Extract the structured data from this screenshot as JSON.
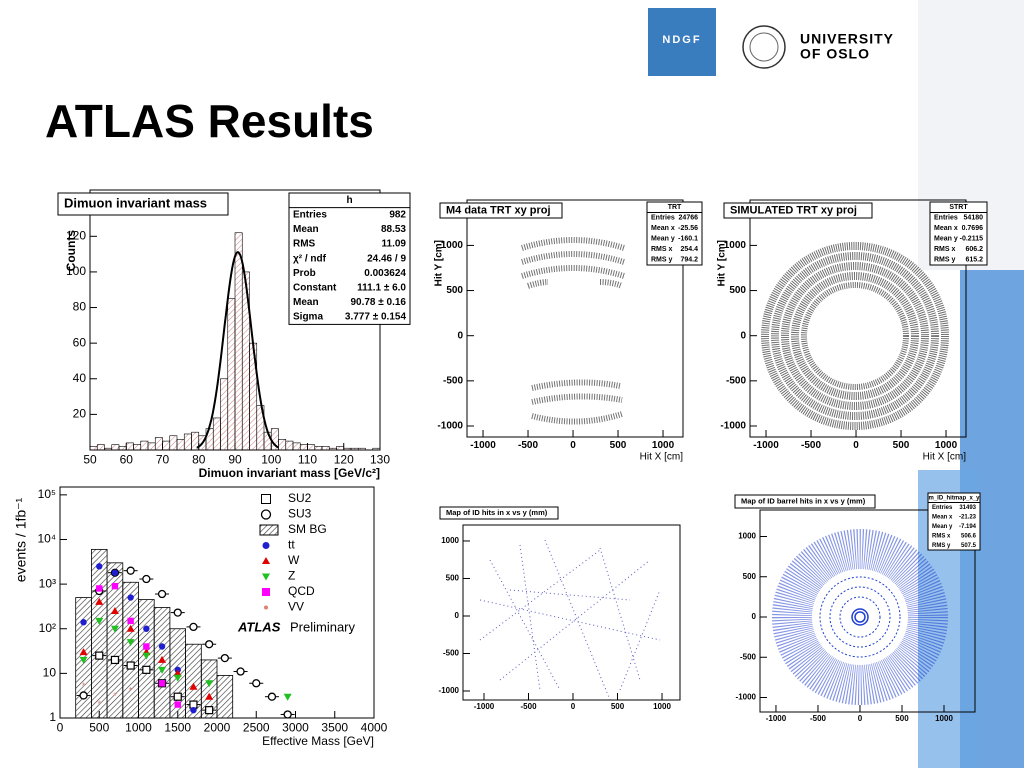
{
  "header": {
    "title": "ATLAS Results",
    "logo_ndgf": "NDGF",
    "logo_line1": "UNIVERSITY",
    "logo_line2": "OF OSLO"
  },
  "chart_data": [
    {
      "type": "histogram",
      "title": "Dimuon invariant mass",
      "x_label": "Dimuon invariant mass [GeV/c²]",
      "y_label": "Counts",
      "bins": [
        50,
        52,
        54,
        56,
        58,
        60,
        62,
        64,
        66,
        68,
        70,
        72,
        74,
        76,
        78,
        80,
        82,
        84,
        86,
        88,
        90,
        92,
        94,
        96,
        98,
        100,
        102,
        104,
        106,
        108,
        110,
        112,
        114,
        116,
        118,
        120,
        122,
        124,
        126,
        128,
        130
      ],
      "values": [
        2,
        3,
        1,
        3,
        2,
        4,
        3,
        5,
        4,
        7,
        5,
        8,
        6,
        9,
        10,
        8,
        12,
        18,
        40,
        85,
        122,
        100,
        60,
        25,
        10,
        12,
        6,
        5,
        4,
        3,
        3,
        2,
        2,
        1,
        2,
        1,
        1,
        1,
        0,
        1
      ],
      "color": "#c0504d",
      "fit": {
        "constant": 111.1,
        "mean": 90.78,
        "sigma": 3.777
      },
      "xlim": [
        50,
        130
      ],
      "xticks": [
        50,
        60,
        70,
        80,
        90,
        100,
        110,
        120,
        130
      ],
      "ylim": [
        0,
        146
      ],
      "yticks": [
        20,
        40,
        60,
        80,
        100,
        120
      ],
      "stats": {
        "title": "h",
        "rows": [
          [
            "Entries",
            "982"
          ],
          [
            "Mean",
            "88.53"
          ],
          [
            "RMS",
            "11.09"
          ],
          [
            "χ² / ndf",
            "24.46 / 9"
          ],
          [
            "Prob",
            "0.003624"
          ],
          [
            "Constant",
            "111.1 ± 6.0"
          ],
          [
            "Mean",
            "90.78 ± 0.16"
          ],
          [
            "Sigma",
            "3.777 ± 0.154"
          ]
        ]
      }
    },
    {
      "type": "scatter",
      "title": "M4 data TRT xy proj",
      "x_label": "Hit X [cm]",
      "y_label": "Hit Y [cm]",
      "xlim": [
        -1178,
        1222
      ],
      "xticks": [
        -1000,
        -500,
        0,
        500,
        1000
      ],
      "ylim": [
        -1122,
        1503
      ],
      "yticks": [
        -1000,
        -500,
        0,
        500,
        1000
      ],
      "stats": {
        "title": "TRT",
        "rows": [
          [
            "Entries",
            "24766"
          ],
          [
            "Mean x",
            "-25.56"
          ],
          [
            "Mean y",
            "-160.1"
          ],
          [
            "RMS x",
            "254.4"
          ],
          [
            "RMS y",
            "794.2"
          ]
        ]
      }
    },
    {
      "type": "scatter",
      "title": "SIMULATED TRT xy proj",
      "x_label": "Hit X [cm]",
      "y_label": "Hit Y [cm]",
      "xlim": [
        -1178,
        1222
      ],
      "xticks": [
        -1000,
        -500,
        0,
        500,
        1000
      ],
      "ylim": [
        -1122,
        1503
      ],
      "yticks": [
        -1000,
        -500,
        0,
        500,
        1000
      ],
      "stats": {
        "title": "STRT",
        "rows": [
          [
            "Entries",
            "54180"
          ],
          [
            "Mean x",
            "0.7696"
          ],
          [
            "Mean y",
            "-0.2115"
          ],
          [
            "RMS x",
            "606.2"
          ],
          [
            "RMS y",
            "615.2"
          ]
        ]
      }
    },
    {
      "type": "scatter",
      "title": "Map of ID hits in x vs y (mm)",
      "xlim": [
        -1236,
        1202
      ],
      "xticks": [
        -1000,
        -500,
        0,
        500,
        1000
      ],
      "ylim": [
        -1120,
        1213
      ],
      "yticks": [
        -1000,
        -500,
        0,
        500,
        1000
      ]
    },
    {
      "type": "scatter",
      "title": "Map of ID barrel hits in x vs y (mm)",
      "xlim": [
        -1190,
        1369
      ],
      "xticks": [
        -1000,
        -500,
        0,
        500,
        1000
      ],
      "ylim": [
        -1180,
        1329
      ],
      "yticks": [
        -1000,
        -500,
        0,
        500,
        1000
      ],
      "stats": {
        "title": "m_ID_hitmap_x_y",
        "rows": [
          [
            "Entries",
            "31493"
          ],
          [
            "Mean x",
            "-21.23"
          ],
          [
            "Mean y",
            "-7.194"
          ],
          [
            "RMS x",
            "506.6"
          ],
          [
            "RMS y",
            "507.5"
          ]
        ]
      }
    },
    {
      "type": "log_histogram",
      "x_label": "Effective Mass [GeV]",
      "y_label": "events / 1fb⁻¹",
      "annotation": "ATLAS",
      "annotation2": "Preliminary",
      "log_y": true,
      "xlim": [
        0,
        4000
      ],
      "xticks": [
        0,
        500,
        1000,
        1500,
        2000,
        2500,
        3000,
        3500,
        4000
      ],
      "ylim": [
        1,
        150000
      ],
      "yticks": [
        {
          "value": 1,
          "label": "1"
        },
        {
          "value": 10,
          "label": "10"
        },
        {
          "value": 100,
          "label": "10²"
        },
        {
          "value": 1000,
          "label": "10³"
        },
        {
          "value": 10000,
          "label": "10⁴"
        },
        {
          "value": 100000,
          "label": "10⁵"
        }
      ],
      "series": [
        {
          "name": "SU2",
          "marker": "square-open",
          "color": "#000000",
          "x": [
            500,
            700,
            900,
            1100,
            1300,
            1500,
            1700,
            1900
          ],
          "values": [
            25,
            20,
            15,
            12,
            6,
            3,
            2,
            1.5
          ]
        },
        {
          "name": "SU3",
          "marker": "circle-open",
          "color": "#000000",
          "x": [
            300,
            500,
            700,
            900,
            1100,
            1300,
            1500,
            1700,
            1900,
            2100,
            2300,
            2500,
            2700,
            2900
          ],
          "values": [
            3.2,
            700,
            1800,
            2000,
            1300,
            600,
            230,
            110,
            45,
            22,
            11,
            6,
            3,
            1.2
          ]
        },
        {
          "name": "SM BG",
          "marker": "hatch",
          "color": "#000000",
          "bins": [
            200,
            400,
            600,
            800,
            1000,
            1200,
            1400,
            1600,
            1800,
            2000,
            2200
          ],
          "values": [
            500,
            6000,
            3000,
            1100,
            450,
            300,
            100,
            45,
            20,
            9
          ]
        },
        {
          "name": "tt",
          "marker": "circle",
          "color": "#1f1fd0",
          "x": [
            300,
            500,
            700,
            900,
            1100,
            1300,
            1500,
            1700
          ],
          "values": [
            140,
            2500,
            1800,
            500,
            100,
            40,
            12,
            1.5
          ]
        },
        {
          "name": "W",
          "marker": "triangle-up",
          "color": "#e00000",
          "x": [
            300,
            500,
            700,
            900,
            1100,
            1300,
            1500,
            1700,
            1900
          ],
          "values": [
            30,
            400,
            250,
            100,
            30,
            20,
            10,
            5,
            3
          ]
        },
        {
          "name": "Z",
          "marker": "triangle-down",
          "color": "#20c020",
          "x": [
            300,
            500,
            700,
            900,
            1100,
            1300,
            1500,
            1900,
            2900
          ],
          "values": [
            20,
            150,
            100,
            50,
            25,
            12,
            8,
            6,
            3
          ]
        },
        {
          "name": "QCD",
          "marker": "square",
          "color": "#ff00ff",
          "x": [
            500,
            700,
            900,
            1100,
            1300,
            1500
          ],
          "values": [
            800,
            900,
            150,
            40,
            6,
            2
          ]
        },
        {
          "name": "VV",
          "marker": "star",
          "color": "#e08070",
          "x": [
            300,
            500,
            700,
            900
          ],
          "values": [
            5,
            2,
            3,
            4
          ]
        }
      ]
    }
  ]
}
